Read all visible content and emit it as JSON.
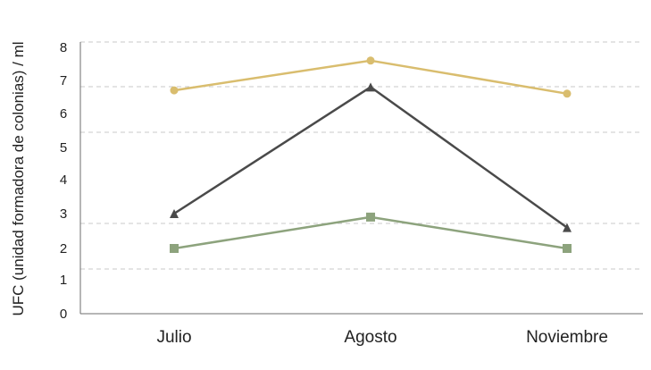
{
  "chart_data": {
    "type": "line",
    "title": "",
    "xlabel": "",
    "ylabel": "UFC (unidad formadora de colonias) / ml",
    "categories": [
      "Julio",
      "Agosto",
      "Noviembre"
    ],
    "ylim": [
      0,
      8
    ],
    "ytick_values": [
      0,
      1,
      2,
      3,
      4,
      5,
      6,
      7,
      8
    ],
    "ytick_labels": [
      "0",
      "1",
      "2",
      "3",
      "4",
      "5",
      "6",
      "7",
      "8"
    ],
    "grid": true,
    "legend": "none",
    "series": [
      {
        "color": "#d9bd6e",
        "marker": "circle",
        "values": [
          6.7,
          7.6,
          6.6
        ]
      },
      {
        "color": "#4a4a4a",
        "marker": "triangle",
        "values": [
          3.0,
          6.8,
          2.6
        ]
      },
      {
        "color": "#8da37d",
        "marker": "square",
        "values": [
          2.0,
          2.9,
          2.0
        ]
      }
    ]
  }
}
